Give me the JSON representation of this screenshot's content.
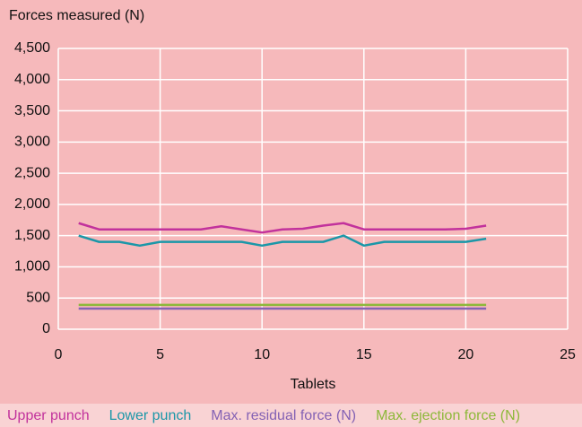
{
  "chart_data": {
    "type": "line",
    "title": "Forces measured (N)",
    "x_label": "Tablets",
    "x": [
      1,
      2,
      3,
      4,
      5,
      6,
      7,
      8,
      9,
      10,
      11,
      12,
      13,
      14,
      15,
      16,
      17,
      18,
      19,
      20,
      21
    ],
    "series": [
      {
        "name": "Upper punch",
        "color": "#c2329c",
        "values": [
          1700,
          1600,
          1600,
          1600,
          1600,
          1600,
          1600,
          1650,
          1600,
          1550,
          1600,
          1610,
          1660,
          1700,
          1600,
          1600,
          1600,
          1600,
          1600,
          1610,
          1660
        ]
      },
      {
        "name": "Lower punch",
        "color": "#1b97a8",
        "values": [
          1500,
          1400,
          1400,
          1340,
          1400,
          1400,
          1400,
          1400,
          1400,
          1340,
          1400,
          1400,
          1400,
          1500,
          1340,
          1400,
          1400,
          1400,
          1400,
          1400,
          1450
        ]
      },
      {
        "name": "Max. residual force (N)",
        "color": "#8462b4",
        "values": [
          330,
          330,
          330,
          330,
          330,
          330,
          330,
          330,
          330,
          330,
          330,
          330,
          330,
          330,
          330,
          330,
          330,
          330,
          330,
          330,
          330
        ]
      },
      {
        "name": "Max. ejection force (N)",
        "color": "#8db83a",
        "values": [
          390,
          390,
          390,
          390,
          390,
          390,
          390,
          390,
          390,
          390,
          390,
          390,
          390,
          390,
          390,
          390,
          390,
          390,
          390,
          390,
          390
        ]
      }
    ],
    "xlim": [
      0,
      25
    ],
    "xticks": [
      0,
      5,
      10,
      15,
      20,
      25
    ],
    "ylim": [
      0,
      4500
    ],
    "yticks": [
      0,
      500,
      {
        "value": 1000,
        "label": "1,000"
      },
      {
        "value": 1500,
        "label": "1,500"
      },
      {
        "value": 2000,
        "label": "2,000"
      },
      {
        "value": 2500,
        "label": "2,500"
      },
      {
        "value": 3000,
        "label": "3,000"
      },
      {
        "value": 3500,
        "label": "3,500"
      },
      {
        "value": 4000,
        "label": "4,000"
      },
      {
        "value": 4500,
        "label": "4,500"
      }
    ],
    "grid": true
  }
}
